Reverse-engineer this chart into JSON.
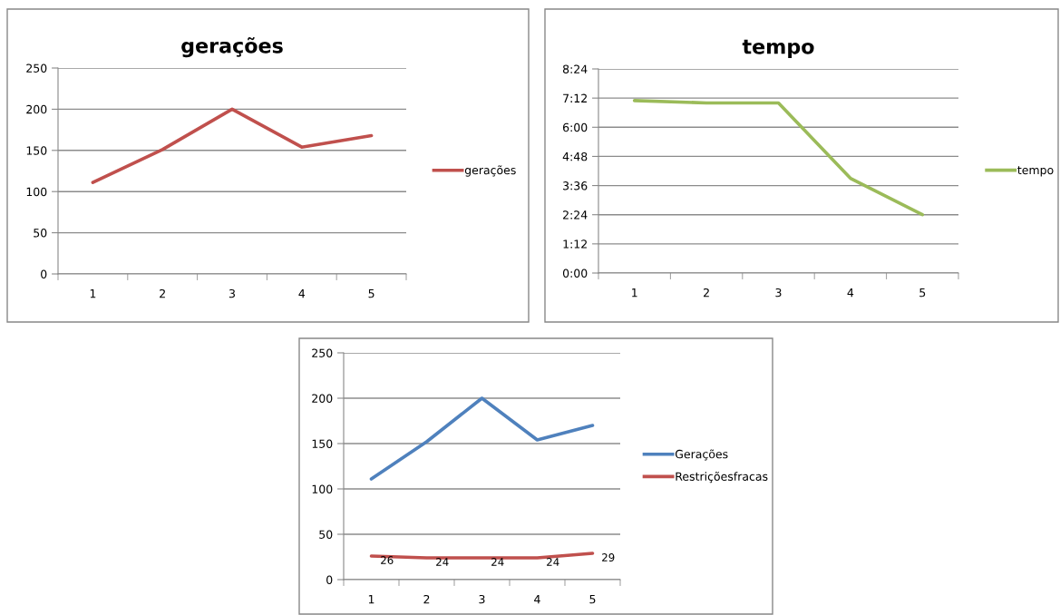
{
  "chart_data": [
    {
      "type": "line",
      "title": "gerações",
      "categories": [
        "1",
        "2",
        "3",
        "4",
        "5"
      ],
      "series": [
        {
          "name": "gerações",
          "color": "#c0504d",
          "values": [
            111,
            151,
            200,
            154,
            168
          ]
        }
      ],
      "ylim": [
        0,
        250
      ],
      "yticks": [
        0,
        50,
        100,
        150,
        200,
        250
      ],
      "grid": "y",
      "legend": "right"
    },
    {
      "type": "line",
      "title": "tempo",
      "categories": [
        "1",
        "2",
        "3",
        "4",
        "5"
      ],
      "series": [
        {
          "name": "tempo",
          "color": "#9bbb59",
          "values": [
            7.1,
            7.0,
            7.0,
            3.9,
            2.4
          ]
        }
      ],
      "ylim": [
        0,
        8.4
      ],
      "yticks": [
        {
          "value": 0,
          "label": "0:00"
        },
        {
          "value": 1.2,
          "label": "1:12"
        },
        {
          "value": 2.4,
          "label": "2:24"
        },
        {
          "value": 3.6,
          "label": "3:36"
        },
        {
          "value": 4.8,
          "label": "4:48"
        },
        {
          "value": 6.0,
          "label": "6:00"
        },
        {
          "value": 7.2,
          "label": "7:12"
        },
        {
          "value": 8.4,
          "label": "8:24"
        }
      ],
      "grid": "y",
      "legend": "right"
    },
    {
      "type": "line",
      "categories": [
        "1",
        "2",
        "3",
        "4",
        "5"
      ],
      "series": [
        {
          "name": "Gerações",
          "color": "#4f81bd",
          "values": [
            111,
            152,
            200,
            154,
            170
          ]
        },
        {
          "name": "Restriçõesfracas",
          "color": "#c0504d",
          "values": [
            26,
            24,
            24,
            24,
            29
          ],
          "value_labels": [
            "26",
            "24",
            "24",
            "24",
            "29"
          ]
        }
      ],
      "ylim": [
        0,
        250
      ],
      "yticks": [
        0,
        50,
        100,
        150,
        200,
        250
      ],
      "grid": "y",
      "legend": "right"
    }
  ]
}
